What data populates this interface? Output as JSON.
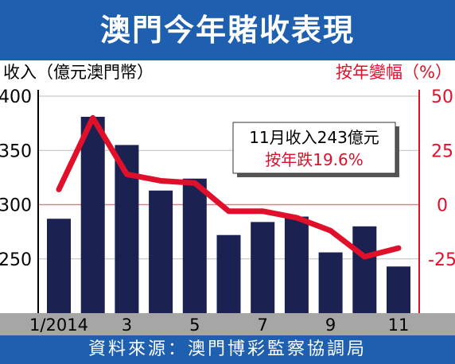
{
  "header": {
    "title": "澳門今年賭收表現"
  },
  "footer": {
    "source": "資料來源：澳門博彩監察協調局"
  },
  "annotation": {
    "line1": "11月收入243億元",
    "line2": "按年跌19.6%"
  },
  "colors": {
    "bar": "#1b2150",
    "line": "#e0102b",
    "header_bg": "#1f5fb0",
    "axis_band": "#a6a6a6",
    "zero_line": "#d9828c",
    "grid": "#bdbdbd"
  },
  "chart_data": {
    "type": "bar+line",
    "left_axis_label": "收入（億元澳門幣）",
    "right_axis_label": "按年變幅（%）",
    "x_tick_labels": [
      "1/2014",
      "3",
      "5",
      "7",
      "9",
      "11"
    ],
    "months": [
      1,
      2,
      3,
      4,
      5,
      6,
      7,
      8,
      9,
      10,
      11
    ],
    "bar_values": [
      287,
      381,
      355,
      313,
      324,
      272,
      284,
      289,
      256,
      280,
      243
    ],
    "line_values": [
      7,
      40,
      14,
      11,
      10,
      -3,
      -3,
      -6,
      -12,
      -24,
      -20
    ],
    "left_ylim": [
      200,
      400
    ],
    "left_ticks": [
      250,
      300,
      350,
      400
    ],
    "right_ylim": [
      -50,
      50
    ],
    "right_ticks": [
      "50",
      "25",
      "0",
      "-25"
    ],
    "right_tick_values": [
      50,
      25,
      0,
      -25
    ]
  }
}
